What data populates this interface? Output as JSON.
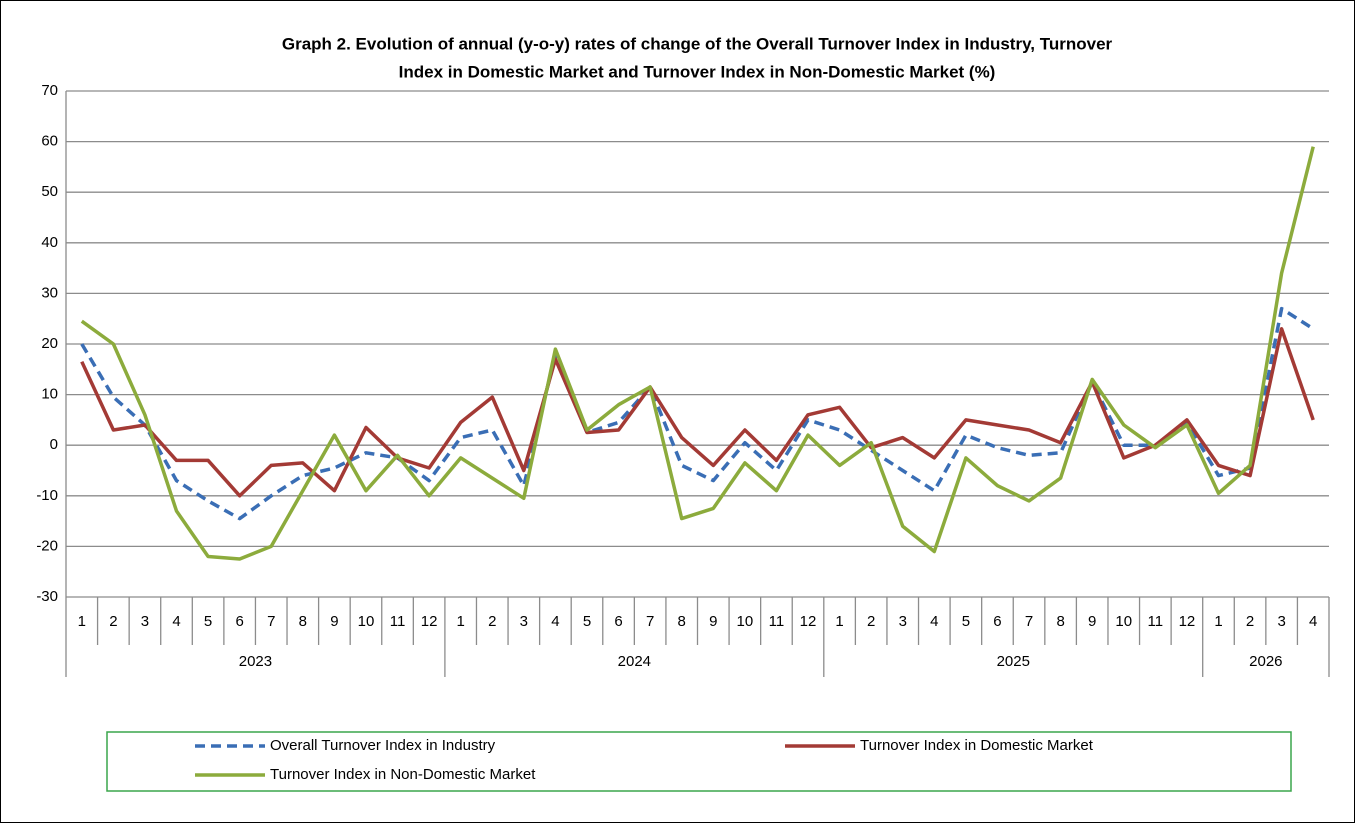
{
  "chart_data": {
    "type": "line",
    "title": [
      "Graph 2. Evolution of annual (y-o-y) rates of change of the  Overall Turnover Index in Industry, Turnover",
      "Index  in Domestic Market and Turnover Index in Non-Domestic Market  (%)"
    ],
    "categories": [
      "1",
      "2",
      "3",
      "4",
      "5",
      "6",
      "7",
      "8",
      "9",
      "10",
      "11",
      "12",
      "1",
      "2",
      "3",
      "4",
      "5",
      "6",
      "7",
      "8",
      "9",
      "10",
      "11",
      "12",
      "1",
      "2",
      "3",
      "4",
      "5",
      "6",
      "7",
      "8",
      "9",
      "10",
      "11",
      "12",
      "1",
      "2",
      "3",
      "4"
    ],
    "years": [
      "2023",
      "2024",
      "2025",
      "2026"
    ],
    "ylim": [
      -30,
      70
    ],
    "yticks": [
      -30,
      -20,
      -10,
      0,
      10,
      20,
      30,
      40,
      50,
      60,
      70
    ],
    "grid": true,
    "series": [
      {
        "name": "Overall Turnover Index in Industry",
        "color": "#3a6eb5",
        "dashed": true,
        "values": [
          20,
          9.5,
          4,
          -7,
          -11,
          -14.5,
          -10,
          -6,
          -4.5,
          -1.5,
          -2.5,
          -7,
          1.5,
          3,
          -8,
          18,
          2.5,
          4.5,
          11.5,
          -4,
          -7,
          0.5,
          -5,
          5,
          3,
          -1,
          -5,
          -9,
          2,
          -0.5,
          -2,
          -1.5,
          12.5,
          0,
          0,
          4.5,
          -6,
          -4.5,
          27,
          23
        ]
      },
      {
        "name": "Turnover Index in Domestic Market",
        "color": "#a33a35",
        "dashed": false,
        "values": [
          16.5,
          3,
          4,
          -3,
          -3,
          -10,
          -4,
          -3.5,
          -9,
          3.5,
          -2.5,
          -4.5,
          4.5,
          9.5,
          -5,
          17,
          2.5,
          3,
          11.5,
          1.5,
          -4,
          3,
          -3,
          6,
          7.5,
          -0.5,
          1.5,
          -2.5,
          5,
          4,
          3,
          0.5,
          12.5,
          -2.5,
          0,
          5,
          -4,
          -6,
          23,
          5
        ]
      },
      {
        "name": "Turnover Index in Non-Domestic Market",
        "color": "#8cab3c",
        "dashed": false,
        "values": [
          24.5,
          20,
          6,
          -13,
          -22,
          -22.5,
          -20,
          -9,
          2,
          -9,
          -2,
          -10,
          -2.5,
          -6.5,
          -10.5,
          19,
          3,
          8,
          11.5,
          -14.5,
          -12.5,
          -3.5,
          -9,
          2,
          -4,
          0.5,
          -16,
          -21,
          -2.5,
          -8,
          -11,
          -6.5,
          13,
          4,
          -0.5,
          4,
          -9.5,
          -4,
          34,
          59
        ]
      }
    ]
  }
}
